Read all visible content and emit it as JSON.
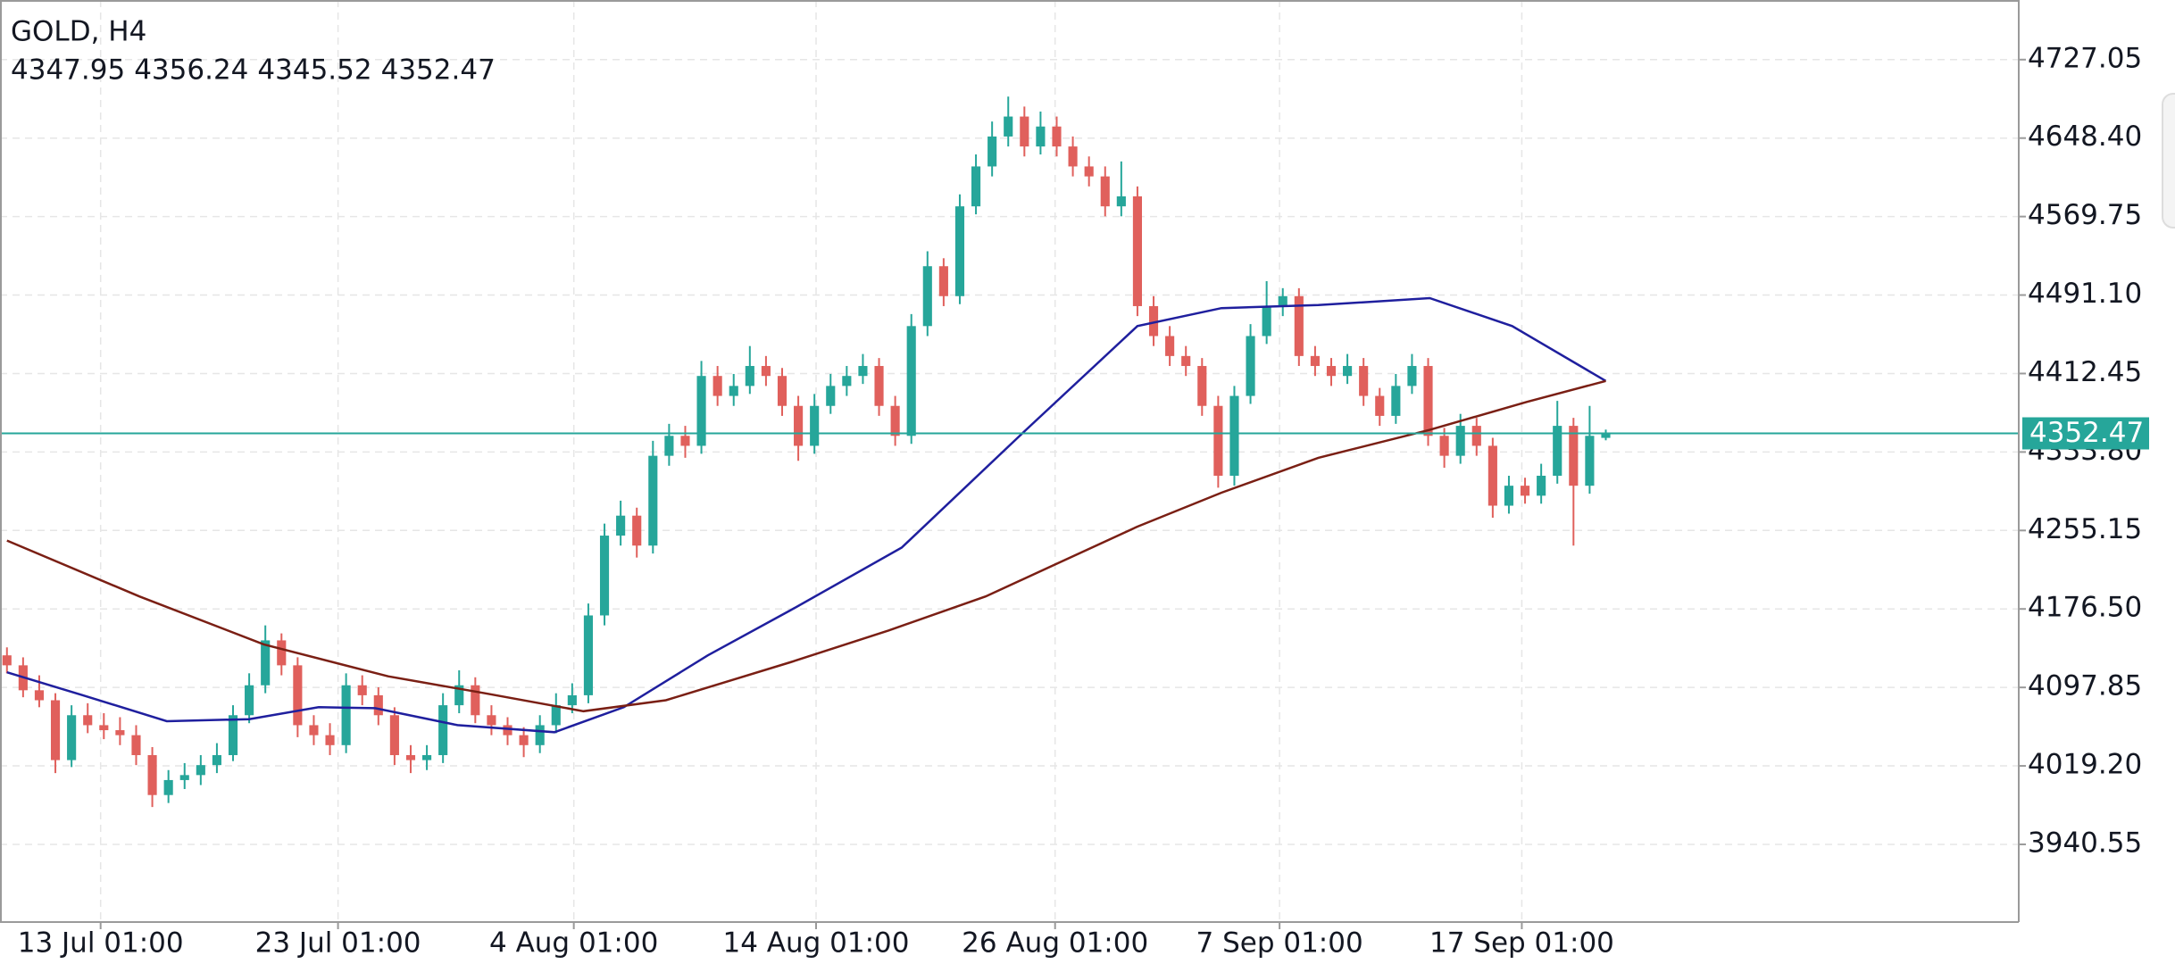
{
  "chart_data": {
    "type": "candlestick",
    "title": "GOLD, H4",
    "up_color": "#26a69a",
    "down_color": "#e0605c",
    "last_price_color": "#26a69a",
    "grid": true,
    "xlim": [
      -0.43,
      124.57
    ],
    "ylim": [
      3862.7,
      4786.8
    ],
    "xticks": [
      {
        "value": 5.8,
        "label": "13 Jul 01:00"
      },
      {
        "value": 20.5,
        "label": "23 Jul 01:00"
      },
      {
        "value": 35.1,
        "label": "4 Aug 01:00"
      },
      {
        "value": 50.1,
        "label": "14 Aug 01:00"
      },
      {
        "value": 64.9,
        "label": "26 Aug 01:00"
      },
      {
        "value": 78.8,
        "label": "7 Sep 01:00"
      },
      {
        "value": 93.8,
        "label": "17 Sep 01:00"
      }
    ],
    "yticks": [
      4727.05,
      {
        "value": 4648.4,
        "label": "4648.40"
      },
      4569.75,
      {
        "value": 4491.1,
        "label": "4491.10"
      },
      4412.45,
      {
        "value": 4333.8,
        "label": "4333.80"
      },
      4255.15,
      {
        "value": 4176.5,
        "label": "4176.50"
      },
      4097.85,
      {
        "value": 4019.2,
        "label": "4019.20"
      },
      3940.55
    ],
    "candles": [
      [
        4130,
        4138,
        4112,
        4120
      ],
      [
        4120,
        4128,
        4088,
        4095
      ],
      [
        4095,
        4110,
        4078,
        4085
      ],
      [
        4085,
        4092,
        4012,
        4025
      ],
      [
        4025,
        4080,
        4018,
        4070
      ],
      [
        4070,
        4082,
        4052,
        4060
      ],
      [
        4060,
        4072,
        4046,
        4055
      ],
      [
        4055,
        4068,
        4040,
        4050
      ],
      [
        4050,
        4060,
        4020,
        4030
      ],
      [
        4030,
        4038,
        3978,
        3990
      ],
      [
        3990,
        4015,
        3982,
        4005
      ],
      [
        4005,
        4022,
        3996,
        4010
      ],
      [
        4010,
        4030,
        4000,
        4020
      ],
      [
        4020,
        4042,
        4012,
        4030
      ],
      [
        4030,
        4080,
        4024,
        4070
      ],
      [
        4070,
        4112,
        4062,
        4100
      ],
      [
        4100,
        4160,
        4092,
        4145
      ],
      [
        4145,
        4152,
        4110,
        4120
      ],
      [
        4120,
        4128,
        4048,
        4060
      ],
      [
        4060,
        4070,
        4040,
        4050
      ],
      [
        4050,
        4062,
        4030,
        4040
      ],
      [
        4040,
        4112,
        4032,
        4100
      ],
      [
        4100,
        4110,
        4080,
        4090
      ],
      [
        4090,
        4098,
        4060,
        4070
      ],
      [
        4070,
        4078,
        4020,
        4030
      ],
      [
        4030,
        4040,
        4012,
        4025
      ],
      [
        4025,
        4040,
        4015,
        4030
      ],
      [
        4030,
        4092,
        4022,
        4080
      ],
      [
        4080,
        4115,
        4072,
        4100
      ],
      [
        4100,
        4108,
        4062,
        4070
      ],
      [
        4070,
        4080,
        4050,
        4060
      ],
      [
        4060,
        4068,
        4040,
        4050
      ],
      [
        4050,
        4058,
        4028,
        4040
      ],
      [
        4040,
        4070,
        4032,
        4060
      ],
      [
        4060,
        4092,
        4052,
        4080
      ],
      [
        4080,
        4102,
        4072,
        4090
      ],
      [
        4090,
        4182,
        4082,
        4170
      ],
      [
        4170,
        4262,
        4160,
        4250
      ],
      [
        4250,
        4285,
        4240,
        4270
      ],
      [
        4270,
        4278,
        4228,
        4240
      ],
      [
        4240,
        4345,
        4232,
        4330
      ],
      [
        4330,
        4362,
        4320,
        4350
      ],
      [
        4350,
        4360,
        4328,
        4340
      ],
      [
        4340,
        4425,
        4332,
        4410
      ],
      [
        4410,
        4420,
        4380,
        4390
      ],
      [
        4390,
        4412,
        4380,
        4400
      ],
      [
        4400,
        4440,
        4392,
        4420
      ],
      [
        4420,
        4430,
        4400,
        4410
      ],
      [
        4410,
        4418,
        4370,
        4380
      ],
      [
        4380,
        4390,
        4325,
        4340
      ],
      [
        4340,
        4392,
        4332,
        4380
      ],
      [
        4380,
        4412,
        4372,
        4400
      ],
      [
        4400,
        4420,
        4390,
        4410
      ],
      [
        4410,
        4432,
        4402,
        4420
      ],
      [
        4420,
        4428,
        4370,
        4380
      ],
      [
        4380,
        4390,
        4340,
        4350
      ],
      [
        4350,
        4472,
        4342,
        4460
      ],
      [
        4460,
        4535,
        4450,
        4520
      ],
      [
        4520,
        4528,
        4480,
        4490
      ],
      [
        4490,
        4592,
        4482,
        4580
      ],
      [
        4580,
        4632,
        4572,
        4620
      ],
      [
        4620,
        4665,
        4610,
        4650
      ],
      [
        4650,
        4690,
        4640,
        4670
      ],
      [
        4670,
        4680,
        4630,
        4640
      ],
      [
        4640,
        4675,
        4632,
        4660
      ],
      [
        4660,
        4670,
        4630,
        4640
      ],
      [
        4640,
        4650,
        4610,
        4620
      ],
      [
        4620,
        4630,
        4600,
        4610
      ],
      [
        4610,
        4620,
        4570,
        4580
      ],
      [
        4580,
        4625,
        4570,
        4590
      ],
      [
        4590,
        4600,
        4470,
        4480
      ],
      [
        4480,
        4490,
        4440,
        4450
      ],
      [
        4450,
        4460,
        4420,
        4430
      ],
      [
        4430,
        4440,
        4410,
        4420
      ],
      [
        4420,
        4428,
        4370,
        4380
      ],
      [
        4380,
        4390,
        4298,
        4310
      ],
      [
        4310,
        4400,
        4300,
        4390
      ],
      [
        4390,
        4462,
        4382,
        4450
      ],
      [
        4450,
        4505,
        4442,
        4480
      ],
      [
        4480,
        4498,
        4470,
        4490
      ],
      [
        4490,
        4498,
        4420,
        4430
      ],
      [
        4430,
        4440,
        4410,
        4420
      ],
      [
        4420,
        4428,
        4400,
        4410
      ],
      [
        4410,
        4432,
        4402,
        4420
      ],
      [
        4420,
        4428,
        4380,
        4390
      ],
      [
        4390,
        4398,
        4360,
        4370
      ],
      [
        4370,
        4412,
        4362,
        4400
      ],
      [
        4400,
        4432,
        4392,
        4420
      ],
      [
        4420,
        4428,
        4340,
        4350
      ],
      [
        4350,
        4358,
        4318,
        4330
      ],
      [
        4330,
        4372,
        4322,
        4360
      ],
      [
        4360,
        4368,
        4330,
        4340
      ],
      [
        4340,
        4348,
        4268,
        4280
      ],
      [
        4280,
        4310,
        4272,
        4300
      ],
      [
        4300,
        4308,
        4282,
        4290
      ],
      [
        4290,
        4322,
        4282,
        4310
      ],
      [
        4310,
        4385,
        4302,
        4360
      ],
      [
        4360,
        4368,
        4240,
        4300
      ],
      [
        4300,
        4380,
        4292,
        4350
      ],
      [
        4347.95,
        4356.24,
        4345.52,
        4352.47
      ]
    ],
    "series": [
      {
        "color": "#1f1f9e",
        "x": [
          0,
          4.7,
          9.9,
          15,
          19.3,
          22.8,
          27.9,
          33.9,
          38.2,
          43.4,
          48.5,
          55.4,
          63.1,
          70,
          75.2,
          81.2,
          88.1,
          93.2,
          99
        ],
        "values": [
          4113,
          4090,
          4064,
          4066,
          4078,
          4077,
          4060,
          4053,
          4078,
          4130,
          4175,
          4238,
          4356,
          4460,
          4478,
          4481,
          4488,
          4460,
          4405
        ]
      },
      {
        "color": "#7a1f14",
        "x": [
          0,
          8.2,
          15.9,
          23.6,
          29.6,
          35.7,
          40.8,
          48.5,
          54.6,
          60.6,
          70,
          75.2,
          81.2,
          88.1,
          94.1,
          99
        ],
        "values": [
          4245,
          4189,
          4141,
          4109,
          4092,
          4074,
          4085,
          4123,
          4155,
          4189,
          4259,
          4293,
          4328,
          4356,
          4384,
          4405
        ]
      }
    ]
  }
}
